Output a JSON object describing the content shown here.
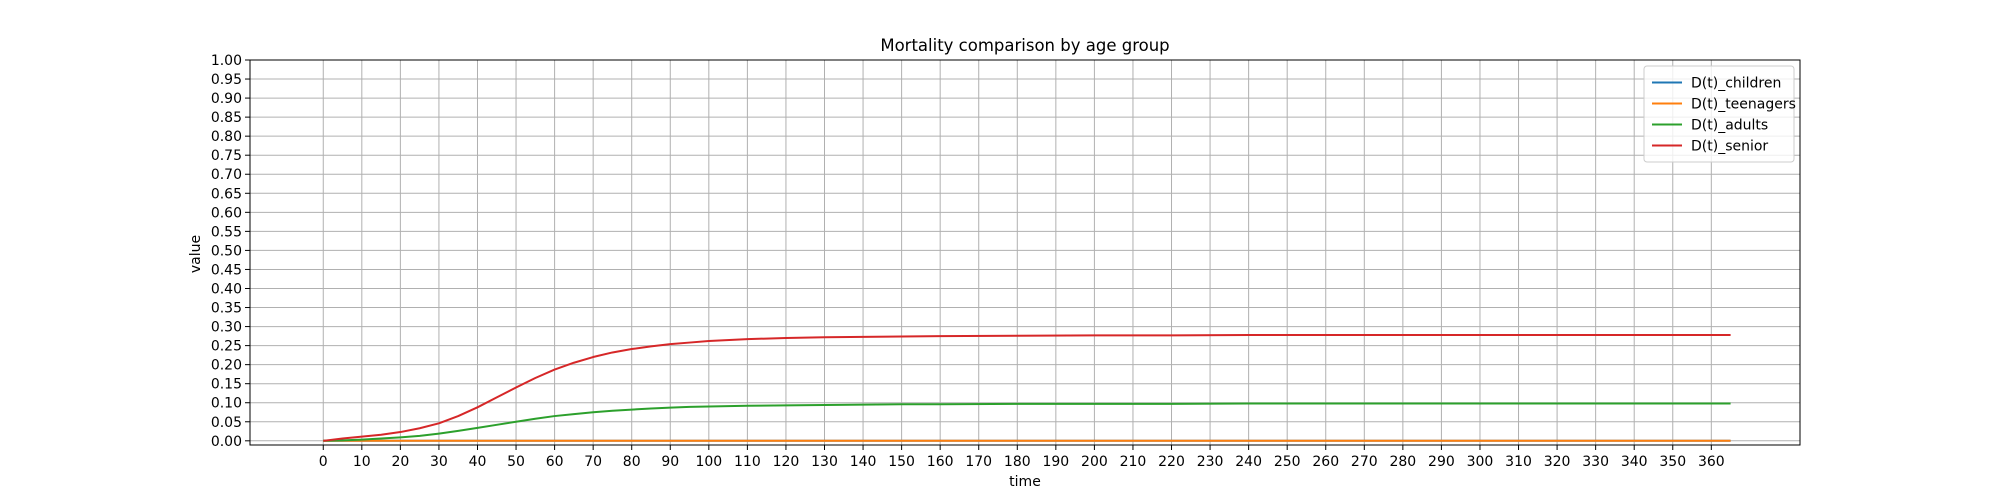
{
  "chart_data": {
    "type": "line",
    "title": "Mortality comparison by age group",
    "xlabel": "time",
    "ylabel": "value",
    "xlim": [
      -19,
      383
    ],
    "ylim": [
      -0.011,
      1.0
    ],
    "xticks": [
      0,
      10,
      20,
      30,
      40,
      50,
      60,
      70,
      80,
      90,
      100,
      110,
      120,
      130,
      140,
      150,
      160,
      170,
      180,
      190,
      200,
      210,
      220,
      230,
      240,
      250,
      260,
      270,
      280,
      290,
      300,
      310,
      320,
      330,
      340,
      350,
      360
    ],
    "yticks": [
      "0.00",
      "0.05",
      "0.10",
      "0.15",
      "0.20",
      "0.25",
      "0.30",
      "0.35",
      "0.40",
      "0.45",
      "0.50",
      "0.55",
      "0.60",
      "0.65",
      "0.70",
      "0.75",
      "0.80",
      "0.85",
      "0.90",
      "0.95",
      "1.00"
    ],
    "grid": true,
    "legend_position": "top-right",
    "x": [
      0,
      5,
      10,
      15,
      20,
      25,
      30,
      35,
      40,
      45,
      50,
      55,
      60,
      65,
      70,
      75,
      80,
      85,
      90,
      95,
      100,
      110,
      120,
      130,
      140,
      150,
      160,
      180,
      200,
      220,
      240,
      260,
      280,
      300,
      320,
      340,
      365
    ],
    "series": [
      {
        "name": "D(t)_children",
        "color": "#1f77b4",
        "values": [
          0,
          0,
          0,
          0,
          0,
          0,
          0,
          0,
          0,
          0,
          0,
          0,
          0,
          0,
          0,
          0,
          0,
          0,
          0,
          0,
          0,
          0,
          0,
          0,
          0,
          0,
          0,
          0,
          0,
          0,
          0,
          0,
          0,
          0,
          0,
          0,
          0
        ]
      },
      {
        "name": "D(t)_teenagers",
        "color": "#ff7f0e",
        "values": [
          0,
          0,
          0,
          0,
          0,
          0,
          0,
          0,
          0,
          0,
          0,
          0,
          0,
          0,
          0,
          0,
          0,
          0,
          0,
          0,
          0,
          0,
          0,
          0,
          0,
          0,
          0,
          0,
          0,
          0,
          0,
          0,
          0,
          0,
          0,
          0,
          0
        ]
      },
      {
        "name": "D(t)_adults",
        "color": "#2ca02c",
        "values": [
          0.0,
          0.001,
          0.003,
          0.006,
          0.009,
          0.013,
          0.019,
          0.026,
          0.034,
          0.042,
          0.05,
          0.058,
          0.065,
          0.07,
          0.075,
          0.079,
          0.082,
          0.085,
          0.087,
          0.089,
          0.09,
          0.092,
          0.093,
          0.094,
          0.095,
          0.096,
          0.096,
          0.097,
          0.097,
          0.097,
          0.098,
          0.098,
          0.098,
          0.098,
          0.098,
          0.098,
          0.098
        ]
      },
      {
        "name": "D(t)_senior",
        "color": "#d62728",
        "values": [
          0.0,
          0.006,
          0.011,
          0.016,
          0.023,
          0.033,
          0.046,
          0.065,
          0.088,
          0.114,
          0.14,
          0.165,
          0.187,
          0.205,
          0.22,
          0.232,
          0.241,
          0.248,
          0.254,
          0.258,
          0.262,
          0.267,
          0.27,
          0.272,
          0.273,
          0.274,
          0.275,
          0.276,
          0.277,
          0.277,
          0.278,
          0.278,
          0.278,
          0.278,
          0.278,
          0.278,
          0.278
        ]
      }
    ]
  }
}
